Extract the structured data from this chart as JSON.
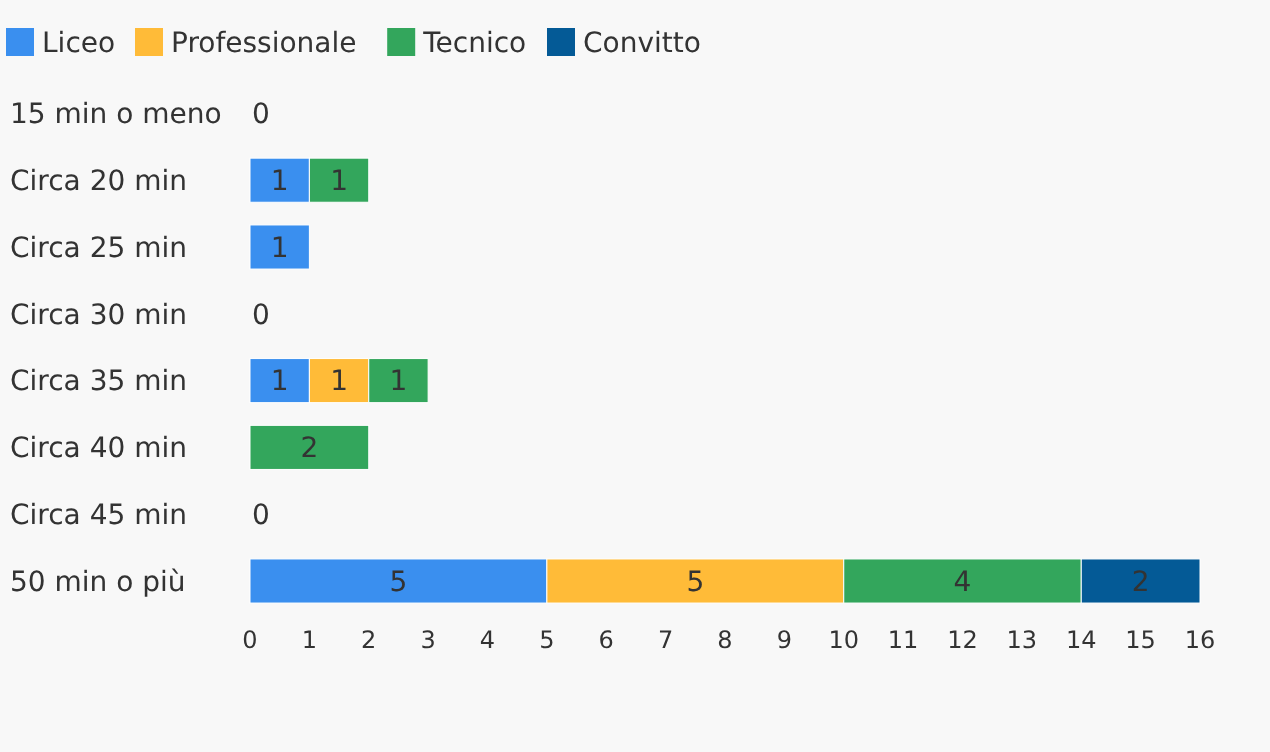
{
  "chart_data": {
    "type": "bar",
    "orientation": "horizontal",
    "stacked": true,
    "legend": "top left",
    "grid": false,
    "categories": [
      "15 min o meno",
      "Circa 20 min",
      "Circa 25 min",
      "Circa 30 min",
      "Circa 35 min",
      "Circa 40 min",
      "Circa 45 min",
      "50 min o più"
    ],
    "series": [
      {
        "name": "Liceo",
        "color": "#3a8fef",
        "values": [
          0,
          1,
          1,
          0,
          1,
          0,
          0,
          5
        ],
        "value_labels": [
          null,
          "1",
          "1",
          null,
          "1",
          null,
          null,
          "5"
        ]
      },
      {
        "name": "Professionale",
        "color": "#ffbb38",
        "values": [
          0,
          0,
          0,
          0,
          1,
          0,
          0,
          5
        ],
        "value_labels": [
          null,
          null,
          null,
          null,
          "1",
          null,
          null,
          "5"
        ]
      },
      {
        "name": "Tecnico",
        "color": "#33a65c",
        "values": [
          0,
          1,
          0,
          0,
          1,
          2,
          0,
          4
        ],
        "value_labels": [
          null,
          "1",
          null,
          null,
          "1",
          "2",
          null,
          "4"
        ]
      },
      {
        "name": "Convitto",
        "color": "#045a96",
        "values": [
          0,
          0,
          0,
          0,
          0,
          0,
          0,
          2
        ],
        "value_labels": [
          null,
          null,
          null,
          null,
          null,
          null,
          null,
          "2"
        ]
      }
    ],
    "totals": [
      "0",
      null,
      null,
      "0",
      null,
      null,
      "0",
      null
    ],
    "xlim": [
      0,
      16
    ],
    "xticks": [
      0,
      1,
      2,
      3,
      4,
      5,
      6,
      7,
      8,
      9,
      10,
      11,
      12,
      13,
      14,
      15,
      16
    ]
  }
}
